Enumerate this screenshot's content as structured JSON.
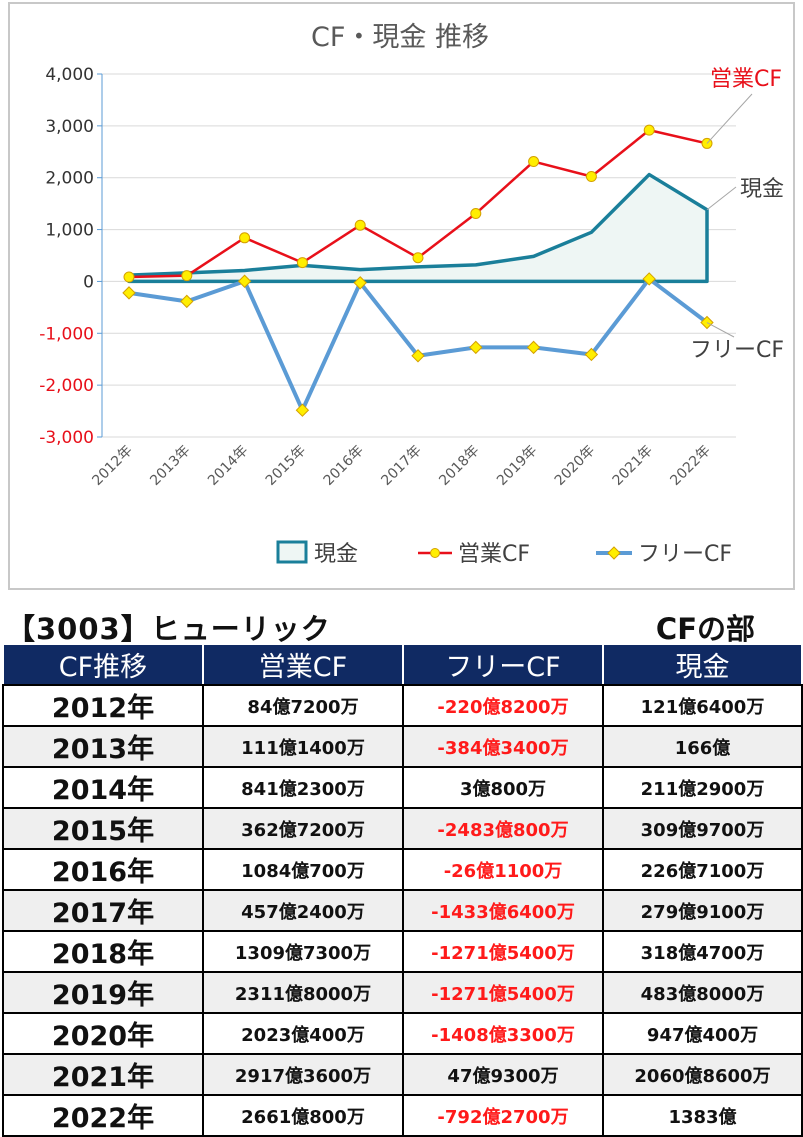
{
  "chart_data": {
    "type": "line",
    "title": "CF・現金 推移",
    "categories": [
      "2012年",
      "2013年",
      "2014年",
      "2015年",
      "2016年",
      "2017年",
      "2018年",
      "2019年",
      "2020年",
      "2021年",
      "2022年"
    ],
    "ylim": [
      -3000,
      4000
    ],
    "yticks": [
      "4,000",
      "3,000",
      "2,000",
      "1,000",
      "0",
      "-1,000",
      "-2,000",
      "-3,000"
    ],
    "ytick_values": [
      4000,
      3000,
      2000,
      1000,
      0,
      -1000,
      -2000,
      -3000
    ],
    "grid": true,
    "legend_position": "bottom",
    "series": [
      {
        "name": "現金",
        "kind": "area",
        "color": "#1a7f9a",
        "fill": "#eef6f4",
        "values": [
          121.64,
          166,
          211.29,
          309.97,
          226.71,
          279.91,
          318.47,
          483.8,
          947.04,
          2060.86,
          1383
        ]
      },
      {
        "name": "営業CF",
        "kind": "line",
        "color": "#e8101a",
        "marker": "#ffee00",
        "values": [
          84.72,
          111.14,
          841.23,
          362.72,
          1084.07,
          457.24,
          1309.73,
          2311.8,
          2023.04,
          2917.36,
          2661.08
        ]
      },
      {
        "name": "フリーCF",
        "kind": "line",
        "color": "#5b9bd5",
        "marker": "#ffee00",
        "values": [
          -220.82,
          -384.34,
          3.08,
          -2483.08,
          -26.11,
          -1433.64,
          -1271.54,
          -1271.54,
          -1408.33,
          47.93,
          -792.27
        ]
      }
    ],
    "annotations": [
      "営業CF",
      "現金",
      "フリーCF"
    ]
  },
  "colors": {
    "negative": "#ff1a1a",
    "header_bg": "#102a63",
    "axis_red": "#e8101a"
  },
  "heading": {
    "company": "【3003】ヒューリック",
    "section": "CFの部"
  },
  "table": {
    "headers": [
      "CF推移",
      "営業CF",
      "フリーCF",
      "現金"
    ],
    "rows": [
      {
        "year": "2012年",
        "op": "84億7200万",
        "free": "-220億8200万",
        "cash": "121億6400万"
      },
      {
        "year": "2013年",
        "op": "111億1400万",
        "free": "-384億3400万",
        "cash": "166億"
      },
      {
        "year": "2014年",
        "op": "841億2300万",
        "free": "3億800万",
        "cash": "211億2900万"
      },
      {
        "year": "2015年",
        "op": "362億7200万",
        "free": "-2483億800万",
        "cash": "309億9700万"
      },
      {
        "year": "2016年",
        "op": "1084億700万",
        "free": "-26億1100万",
        "cash": "226億7100万"
      },
      {
        "year": "2017年",
        "op": "457億2400万",
        "free": "-1433億6400万",
        "cash": "279億9100万"
      },
      {
        "year": "2018年",
        "op": "1309億7300万",
        "free": "-1271億5400万",
        "cash": "318億4700万"
      },
      {
        "year": "2019年",
        "op": "2311億8000万",
        "free": "-1271億5400万",
        "cash": "483億8000万"
      },
      {
        "year": "2020年",
        "op": "2023億400万",
        "free": "-1408億3300万",
        "cash": "947億400万"
      },
      {
        "year": "2021年",
        "op": "2917億3600万",
        "free": "47億9300万",
        "cash": "2060億8600万"
      },
      {
        "year": "2022年",
        "op": "2661億800万",
        "free": "-792億2700万",
        "cash": "1383億"
      }
    ]
  }
}
